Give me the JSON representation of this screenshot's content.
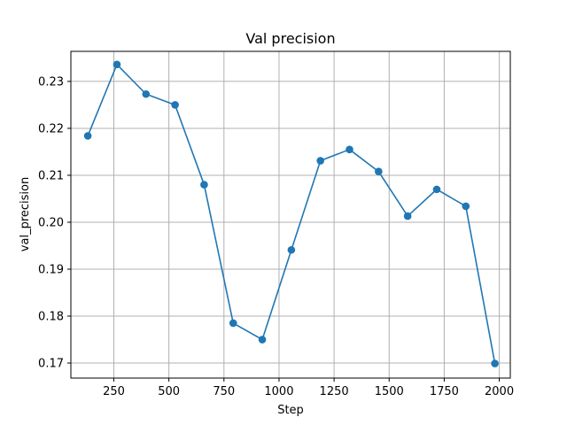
{
  "chart_data": {
    "type": "line",
    "title": "Val precision",
    "xlabel": "Step",
    "ylabel": "val_precision",
    "xlim": [
      55,
      2050
    ],
    "ylim": [
      0.1668,
      0.2364
    ],
    "xticks": [
      250,
      500,
      750,
      1000,
      1250,
      1500,
      1750,
      2000
    ],
    "yticks": [
      0.17,
      0.18,
      0.19,
      0.2,
      0.21,
      0.22,
      0.23
    ],
    "xtick_labels": [
      "250",
      "500",
      "750",
      "1000",
      "1250",
      "1500",
      "1750",
      "2000"
    ],
    "ytick_labels": [
      "0.17",
      "0.18",
      "0.19",
      "0.20",
      "0.21",
      "0.22",
      "0.23"
    ],
    "grid": true,
    "series": [
      {
        "name": "val_precision",
        "color": "#1f77b4",
        "x": [
          132,
          264,
          396,
          528,
          660,
          792,
          924,
          1056,
          1188,
          1320,
          1452,
          1584,
          1716,
          1848,
          1980
        ],
        "values": [
          0.2184,
          0.2336,
          0.2273,
          0.225,
          0.208,
          0.1785,
          0.175,
          0.1941,
          0.2131,
          0.2155,
          0.2108,
          0.2013,
          0.207,
          0.2034,
          0.1699
        ]
      }
    ]
  }
}
